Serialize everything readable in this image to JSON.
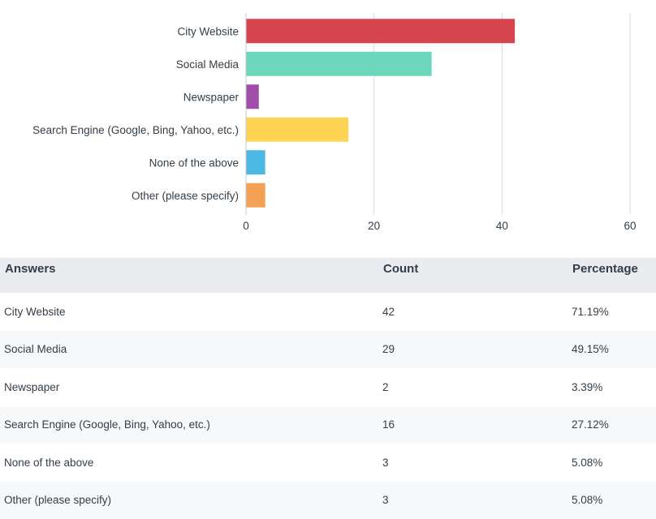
{
  "chart_data": {
    "type": "bar",
    "orientation": "horizontal",
    "categories": [
      "City Website",
      "Social Media",
      "Newspaper",
      "Search Engine (Google, Bing, Yahoo, etc.)",
      "None of the above",
      "Other (please specify)"
    ],
    "values": [
      42,
      29,
      2,
      16,
      3,
      3
    ],
    "colors": [
      "#d6464e",
      "#6dd7bd",
      "#a14dac",
      "#ffd452",
      "#4db8e4",
      "#f4a055"
    ],
    "xlim": [
      0,
      60
    ],
    "xticks": [
      0,
      20,
      40,
      60
    ],
    "grid": true,
    "legend": "none",
    "title": "",
    "xlabel": "",
    "ylabel": ""
  },
  "table": {
    "headers": {
      "answer": "Answers",
      "count": "Count",
      "percentage": "Percentage"
    },
    "rows": [
      {
        "answer": "City Website",
        "count": "42",
        "percentage": "71.19%"
      },
      {
        "answer": "Social Media",
        "count": "29",
        "percentage": "49.15%"
      },
      {
        "answer": "Newspaper",
        "count": "2",
        "percentage": "3.39%"
      },
      {
        "answer": "Search Engine (Google, Bing, Yahoo, etc.)",
        "count": "16",
        "percentage": "27.12%"
      },
      {
        "answer": "None of the above",
        "count": "3",
        "percentage": "5.08%"
      },
      {
        "answer": "Other (please specify)",
        "count": "3",
        "percentage": "5.08%"
      }
    ]
  }
}
